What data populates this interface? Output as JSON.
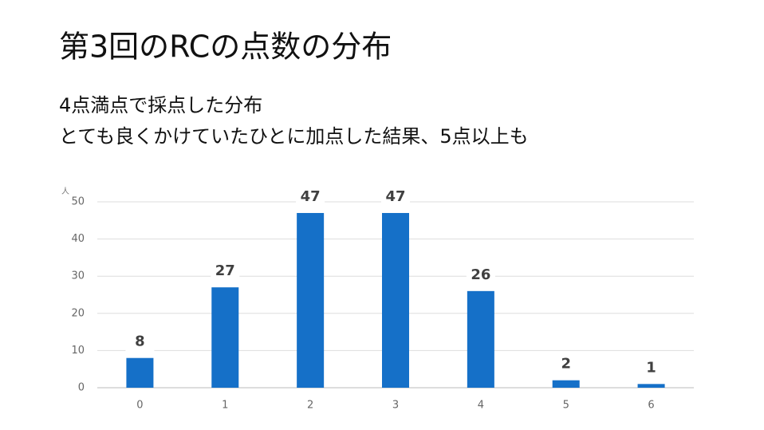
{
  "chart_data": {
    "type": "bar",
    "title": "第3回のRCの点数の分布",
    "subtitle": [
      "4点満点で採点した分布",
      "とても良くかけていたひとに加点した結果、5点以上も"
    ],
    "ylabel": "人",
    "categories": [
      "0",
      "1",
      "2",
      "3",
      "4",
      "5",
      "6"
    ],
    "values": [
      8,
      27,
      47,
      47,
      26,
      2,
      1
    ],
    "color": "#1570c8",
    "ylim": [
      0,
      50
    ],
    "yticks": [
      0,
      10,
      20,
      30,
      40,
      50
    ],
    "grid": true
  }
}
